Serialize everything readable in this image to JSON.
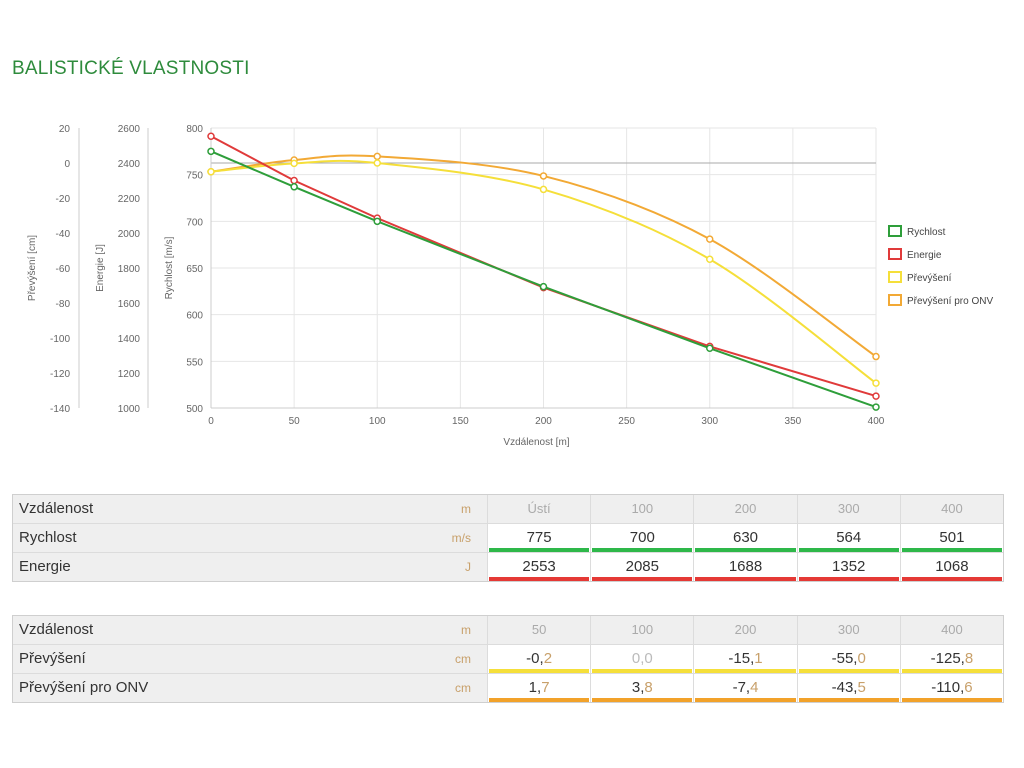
{
  "page": {
    "title": "BALISTICKÉ VLASTNOSTI"
  },
  "chart_data": {
    "type": "line",
    "xlabel": "Vzdálenost [m]",
    "x_ticks": [
      0,
      50,
      100,
      150,
      200,
      250,
      300,
      350,
      400
    ],
    "xlim": [
      0,
      400
    ],
    "grid": true,
    "legend_position": "right",
    "axes": [
      {
        "id": "prevyseni",
        "label": "Převýšení [cm]",
        "ylim": [
          -140,
          20
        ],
        "ticks": [
          20,
          0,
          -20,
          -40,
          -60,
          -80,
          -100,
          -120,
          -140
        ]
      },
      {
        "id": "energie",
        "label": "Energie [J]",
        "ylim": [
          1000,
          2600
        ],
        "ticks": [
          2600,
          2400,
          2200,
          2000,
          1800,
          1600,
          1400,
          1200,
          1000
        ]
      },
      {
        "id": "rychlost",
        "label": "Rychlost [m/s]",
        "ylim": [
          500,
          800
        ],
        "ticks": [
          800,
          750,
          700,
          650,
          600,
          550,
          500
        ]
      }
    ],
    "series": [
      {
        "name": "Rychlost",
        "axis": "rychlost",
        "color": "#2e9e3a",
        "x": [
          0,
          50,
          100,
          200,
          300,
          400
        ],
        "y": [
          775,
          737,
          700,
          630,
          564,
          501
        ],
        "smooth": false
      },
      {
        "name": "Energie",
        "axis": "energie",
        "color": "#e03a3a",
        "x": [
          0,
          50,
          100,
          200,
          300,
          400
        ],
        "y": [
          2553,
          2300,
          2085,
          1688,
          1352,
          1068
        ],
        "smooth": false
      },
      {
        "name": "Převýšení",
        "axis": "prevyseni",
        "color": "#f5df3a",
        "x": [
          0,
          50,
          100,
          200,
          300,
          400
        ],
        "y": [
          -5,
          -0.2,
          0.0,
          -15.1,
          -55.0,
          -125.8
        ],
        "smooth": true
      },
      {
        "name": "Převýšení pro ONV",
        "axis": "prevyseni",
        "color": "#f2a935",
        "x": [
          0,
          50,
          100,
          200,
          300,
          400
        ],
        "y": [
          -5,
          1.7,
          3.8,
          -7.4,
          -43.5,
          -110.6
        ],
        "smooth": true
      }
    ]
  },
  "table1": {
    "rows": [
      {
        "label": "Vzdálenost",
        "unit": "m",
        "kind": "head",
        "cells": [
          "Ústí",
          "100",
          "200",
          "300",
          "400"
        ]
      },
      {
        "label": "Rychlost",
        "unit": "m/s",
        "kind": "data",
        "bar": "#2eb84a",
        "cells": [
          "775",
          "700",
          "630",
          "564",
          "501"
        ]
      },
      {
        "label": "Energie",
        "unit": "J",
        "kind": "data",
        "bar": "#e53935",
        "cells": [
          "2553",
          "2085",
          "1688",
          "1352",
          "1068"
        ]
      }
    ]
  },
  "table2": {
    "rows": [
      {
        "label": "Vzdálenost",
        "unit": "m",
        "kind": "head",
        "cells": [
          "50",
          "100",
          "200",
          "300",
          "400"
        ]
      },
      {
        "label": "Převýšení",
        "unit": "cm",
        "kind": "data",
        "bar": "#f5df3a",
        "cells": [
          "-0,2",
          "0,0",
          "-15,1",
          "-55,0",
          "-125,8"
        ],
        "muted": [
          false,
          true,
          false,
          false,
          false
        ]
      },
      {
        "label": "Převýšení pro ONV",
        "unit": "cm",
        "kind": "data",
        "bar": "#f2a22a",
        "cells": [
          "1,7",
          "3,8",
          "-7,4",
          "-43,5",
          "-110,6"
        ]
      }
    ]
  }
}
